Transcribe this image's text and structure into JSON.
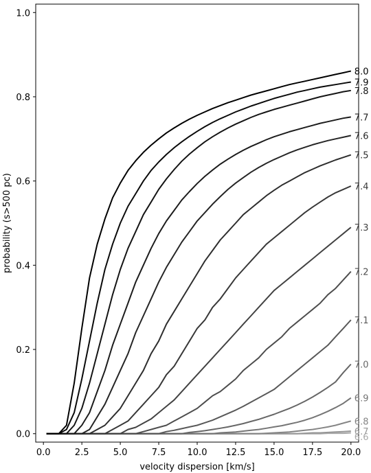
{
  "chart_data": {
    "type": "line",
    "xlabel": "velocity dispersion [km/s]",
    "ylabel": "probability (s>500 pc)",
    "xlim": [
      -0.5,
      20.5
    ],
    "ylim": [
      -0.02,
      1.02
    ],
    "xticks": [
      0.0,
      2.5,
      5.0,
      7.5,
      10.0,
      12.5,
      15.0,
      17.5,
      20.0
    ],
    "xtick_labels": [
      "0.0",
      "2.5",
      "5.0",
      "7.5",
      "10.0",
      "12.5",
      "15.0",
      "17.5",
      "20.0"
    ],
    "yticks": [
      0.0,
      0.2,
      0.4,
      0.6,
      0.8,
      1.0
    ],
    "ytick_labels": [
      "0.0",
      "0.2",
      "0.4",
      "0.6",
      "0.8",
      "1.0"
    ],
    "grid": false,
    "x": [
      0.2,
      1.0,
      1.5,
      2.0,
      2.5,
      3.0,
      3.5,
      4.0,
      4.5,
      5.0,
      5.5,
      6.0,
      6.5,
      7.0,
      7.5,
      8.0,
      8.5,
      9.0,
      9.5,
      10.0,
      10.5,
      11.0,
      11.5,
      12.0,
      12.5,
      13.0,
      13.5,
      14.0,
      14.5,
      15.0,
      15.5,
      16.0,
      16.5,
      17.0,
      17.5,
      18.0,
      18.5,
      19.0,
      19.5,
      20.0
    ],
    "series": [
      {
        "name": "8.0",
        "color": "#000000",
        "values": [
          0.0,
          0.0,
          0.02,
          0.12,
          0.25,
          0.37,
          0.45,
          0.51,
          0.56,
          0.595,
          0.625,
          0.648,
          0.668,
          0.685,
          0.7,
          0.714,
          0.726,
          0.737,
          0.747,
          0.756,
          0.764,
          0.772,
          0.779,
          0.786,
          0.792,
          0.798,
          0.804,
          0.809,
          0.814,
          0.819,
          0.824,
          0.829,
          0.833,
          0.837,
          0.841,
          0.845,
          0.849,
          0.853,
          0.857,
          0.861
        ]
      },
      {
        "name": "7.9",
        "color": "#0a0a0a",
        "values": [
          0.0,
          0.0,
          0.01,
          0.05,
          0.13,
          0.22,
          0.31,
          0.39,
          0.45,
          0.5,
          0.54,
          0.57,
          0.6,
          0.625,
          0.645,
          0.663,
          0.679,
          0.693,
          0.706,
          0.718,
          0.729,
          0.739,
          0.748,
          0.756,
          0.764,
          0.771,
          0.778,
          0.784,
          0.79,
          0.796,
          0.801,
          0.806,
          0.811,
          0.815,
          0.819,
          0.823,
          0.826,
          0.829,
          0.832,
          0.835
        ]
      },
      {
        "name": "7.8",
        "color": "#141414",
        "values": [
          0.0,
          0.0,
          0.0,
          0.02,
          0.06,
          0.12,
          0.19,
          0.26,
          0.33,
          0.39,
          0.44,
          0.48,
          0.52,
          0.55,
          0.58,
          0.605,
          0.627,
          0.647,
          0.664,
          0.679,
          0.693,
          0.705,
          0.716,
          0.726,
          0.735,
          0.743,
          0.751,
          0.758,
          0.764,
          0.77,
          0.775,
          0.78,
          0.785,
          0.79,
          0.795,
          0.8,
          0.804,
          0.808,
          0.812,
          0.815
        ]
      },
      {
        "name": "7.7",
        "color": "#1c1c1c",
        "values": [
          0.0,
          0.0,
          0.0,
          0.0,
          0.02,
          0.05,
          0.1,
          0.15,
          0.21,
          0.26,
          0.31,
          0.36,
          0.4,
          0.44,
          0.475,
          0.505,
          0.53,
          0.555,
          0.575,
          0.594,
          0.611,
          0.626,
          0.64,
          0.652,
          0.663,
          0.673,
          0.682,
          0.69,
          0.698,
          0.705,
          0.711,
          0.717,
          0.722,
          0.727,
          0.732,
          0.737,
          0.741,
          0.745,
          0.749,
          0.752
        ]
      },
      {
        "name": "7.6",
        "color": "#252525",
        "values": [
          0.0,
          0.0,
          0.0,
          0.0,
          0.0,
          0.01,
          0.04,
          0.07,
          0.11,
          0.15,
          0.19,
          0.24,
          0.28,
          0.32,
          0.36,
          0.395,
          0.425,
          0.455,
          0.48,
          0.505,
          0.525,
          0.545,
          0.563,
          0.58,
          0.595,
          0.608,
          0.621,
          0.632,
          0.642,
          0.651,
          0.659,
          0.667,
          0.674,
          0.68,
          0.686,
          0.691,
          0.696,
          0.7,
          0.704,
          0.708
        ]
      },
      {
        "name": "7.5",
        "color": "#2e2e2e",
        "values": [
          0.0,
          0.0,
          0.0,
          0.0,
          0.0,
          0.0,
          0.01,
          0.02,
          0.04,
          0.06,
          0.09,
          0.12,
          0.15,
          0.19,
          0.22,
          0.26,
          0.29,
          0.32,
          0.35,
          0.38,
          0.41,
          0.435,
          0.46,
          0.48,
          0.5,
          0.52,
          0.535,
          0.55,
          0.565,
          0.578,
          0.59,
          0.6,
          0.61,
          0.62,
          0.628,
          0.636,
          0.643,
          0.65,
          0.656,
          0.662
        ]
      },
      {
        "name": "7.4",
        "color": "#383838",
        "values": [
          0.0,
          0.0,
          0.0,
          0.0,
          0.0,
          0.0,
          0.0,
          0.0,
          0.01,
          0.02,
          0.03,
          0.05,
          0.07,
          0.09,
          0.11,
          0.14,
          0.16,
          0.19,
          0.22,
          0.25,
          0.27,
          0.3,
          0.32,
          0.345,
          0.37,
          0.39,
          0.41,
          0.43,
          0.45,
          0.465,
          0.48,
          0.495,
          0.51,
          0.525,
          0.538,
          0.55,
          0.562,
          0.572,
          0.58,
          0.588
        ]
      },
      {
        "name": "7.3",
        "color": "#424242",
        "values": [
          0.0,
          0.0,
          0.0,
          0.0,
          0.0,
          0.0,
          0.0,
          0.0,
          0.0,
          0.0,
          0.01,
          0.015,
          0.025,
          0.035,
          0.05,
          0.065,
          0.08,
          0.1,
          0.12,
          0.14,
          0.16,
          0.18,
          0.2,
          0.22,
          0.24,
          0.26,
          0.28,
          0.3,
          0.32,
          0.34,
          0.355,
          0.37,
          0.385,
          0.4,
          0.415,
          0.43,
          0.445,
          0.46,
          0.475,
          0.49
        ]
      },
      {
        "name": "7.2",
        "color": "#4d4d4d",
        "values": [
          0.0,
          0.0,
          0.0,
          0.0,
          0.0,
          0.0,
          0.0,
          0.0,
          0.0,
          0.0,
          0.0,
          0.0,
          0.005,
          0.01,
          0.015,
          0.02,
          0.03,
          0.04,
          0.05,
          0.06,
          0.075,
          0.09,
          0.1,
          0.115,
          0.13,
          0.15,
          0.165,
          0.18,
          0.2,
          0.215,
          0.23,
          0.25,
          0.265,
          0.28,
          0.295,
          0.31,
          0.33,
          0.345,
          0.365,
          0.385
        ]
      },
      {
        "name": "7.1",
        "color": "#585858",
        "values": [
          0.0,
          0.0,
          0.0,
          0.0,
          0.0,
          0.0,
          0.0,
          0.0,
          0.0,
          0.0,
          0.0,
          0.0,
          0.0,
          0.0,
          0.0,
          0.005,
          0.008,
          0.012,
          0.016,
          0.02,
          0.026,
          0.032,
          0.04,
          0.048,
          0.056,
          0.065,
          0.075,
          0.085,
          0.095,
          0.105,
          0.12,
          0.135,
          0.15,
          0.165,
          0.18,
          0.195,
          0.21,
          0.23,
          0.25,
          0.27
        ]
      },
      {
        "name": "7.0",
        "color": "#666666",
        "values": [
          0.0,
          0.0,
          0.0,
          0.0,
          0.0,
          0.0,
          0.0,
          0.0,
          0.0,
          0.0,
          0.0,
          0.0,
          0.0,
          0.0,
          0.0,
          0.0,
          0.0,
          0.0,
          0.003,
          0.005,
          0.007,
          0.01,
          0.013,
          0.016,
          0.02,
          0.024,
          0.029,
          0.034,
          0.04,
          0.046,
          0.053,
          0.06,
          0.068,
          0.077,
          0.087,
          0.098,
          0.11,
          0.123,
          0.145,
          0.165
        ]
      },
      {
        "name": "6.9",
        "color": "#757575",
        "values": [
          0.0,
          0.0,
          0.0,
          0.0,
          0.0,
          0.0,
          0.0,
          0.0,
          0.0,
          0.0,
          0.0,
          0.0,
          0.0,
          0.0,
          0.0,
          0.0,
          0.0,
          0.0,
          0.0,
          0.0,
          0.0,
          0.0,
          0.002,
          0.003,
          0.004,
          0.006,
          0.008,
          0.01,
          0.013,
          0.016,
          0.019,
          0.023,
          0.027,
          0.032,
          0.038,
          0.045,
          0.053,
          0.062,
          0.072,
          0.085
        ]
      },
      {
        "name": "6.8",
        "color": "#858585",
        "values": [
          0.0,
          0.0,
          0.0,
          0.0,
          0.0,
          0.0,
          0.0,
          0.0,
          0.0,
          0.0,
          0.0,
          0.0,
          0.0,
          0.0,
          0.0,
          0.0,
          0.0,
          0.0,
          0.0,
          0.0,
          0.0,
          0.0,
          0.0,
          0.0,
          0.0,
          0.0,
          0.0,
          0.0,
          0.001,
          0.002,
          0.003,
          0.004,
          0.006,
          0.008,
          0.01,
          0.013,
          0.016,
          0.02,
          0.025,
          0.03
        ]
      },
      {
        "name": "6.7",
        "color": "#969696",
        "values": [
          0.0,
          0.0,
          0.0,
          0.0,
          0.0,
          0.0,
          0.0,
          0.0,
          0.0,
          0.0,
          0.0,
          0.0,
          0.0,
          0.0,
          0.0,
          0.0,
          0.0,
          0.0,
          0.0,
          0.0,
          0.0,
          0.0,
          0.0,
          0.0,
          0.0,
          0.0,
          0.0,
          0.0,
          0.0,
          0.0,
          0.0,
          0.0,
          0.0,
          0.001,
          0.002,
          0.002,
          0.003,
          0.004,
          0.005,
          0.006
        ]
      },
      {
        "name": "6.6",
        "color": "#a8a8a8",
        "values": [
          0.0,
          0.0,
          0.0,
          0.0,
          0.0,
          0.0,
          0.0,
          0.0,
          0.0,
          0.0,
          0.0,
          0.0,
          0.0,
          0.0,
          0.0,
          0.0,
          0.0,
          0.0,
          0.0,
          0.0,
          0.0,
          0.0,
          0.0,
          0.0,
          0.0,
          0.0,
          0.0,
          0.0,
          0.0,
          0.0,
          0.0,
          0.0,
          0.0,
          0.0,
          0.0,
          0.0,
          0.001,
          0.001,
          0.001,
          0.002
        ]
      }
    ]
  }
}
